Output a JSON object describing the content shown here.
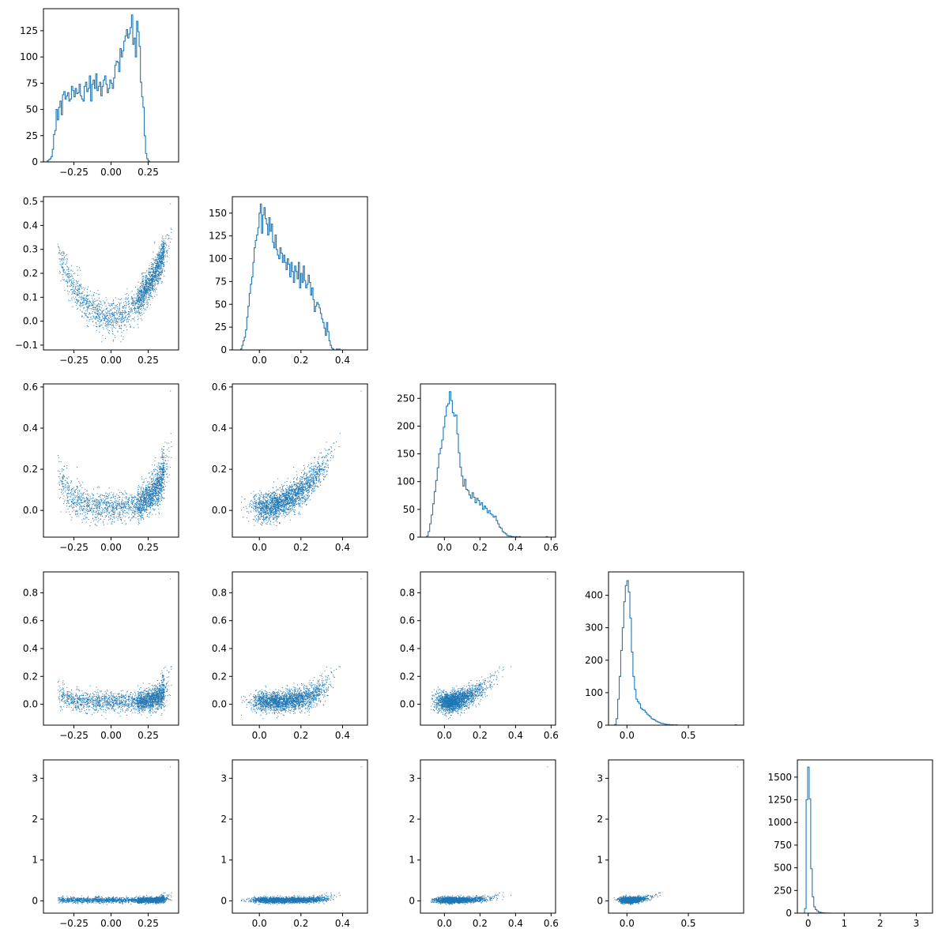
{
  "accent": "#1f77b4",
  "chart_data": {
    "type": "corner",
    "n_vars": 5,
    "n_samples": 5000,
    "variables": [
      {
        "index": 0,
        "range": [
          -0.43,
          0.43
        ]
      },
      {
        "index": 1,
        "range": [
          -0.1,
          0.5
        ]
      },
      {
        "index": 2,
        "range": [
          -0.1,
          0.59
        ]
      },
      {
        "index": 3,
        "range": [
          -0.1,
          0.9
        ]
      },
      {
        "index": 4,
        "range": [
          -0.1,
          3.3
        ]
      }
    ],
    "diagonal": [
      {
        "type": "histogram",
        "var": 0,
        "xlim": [
          -0.455,
          0.455
        ],
        "ylim": [
          0,
          146
        ],
        "xticks": [
          -0.25,
          0.0,
          0.25
        ],
        "xtick_labels": [
          "−0.25",
          "0.00",
          "0.25"
        ],
        "yticks": [
          0,
          25,
          50,
          75,
          100,
          125
        ],
        "ytick_labels": [
          "0",
          "25",
          "50",
          "75",
          "100",
          "125"
        ],
        "bin_start": -0.43,
        "bin_width": 0.0086,
        "counts": [
          1,
          2,
          3,
          5,
          12,
          26,
          30,
          50,
          40,
          52,
          58,
          45,
          64,
          67,
          60,
          63,
          66,
          58,
          60,
          72,
          68,
          62,
          70,
          65,
          66,
          74,
          63,
          60,
          58,
          72,
          76,
          67,
          70,
          82,
          58,
          74,
          78,
          70,
          84,
          68,
          72,
          76,
          63,
          72,
          78,
          82,
          74,
          66,
          70,
          78,
          75,
          70,
          80,
          92,
          96,
          95,
          86,
          108,
          100,
          106,
          115,
          120,
          126,
          118,
          122,
          128,
          140,
          112,
          118,
          100,
          134,
          124,
          110,
          76,
          62,
          52,
          25,
          8,
          3,
          1
        ]
      },
      {
        "type": "histogram",
        "var": 1,
        "xlim": [
          -0.13,
          0.52
        ],
        "ylim": [
          0,
          168
        ],
        "xticks": [
          0.0,
          0.2,
          0.4
        ],
        "xtick_labels": [
          "0.0",
          "0.2",
          "0.4"
        ],
        "yticks": [
          0,
          25,
          50,
          75,
          100,
          125,
          150
        ],
        "ytick_labels": [
          "0",
          "25",
          "50",
          "75",
          "100",
          "125",
          "150"
        ],
        "bin_start": -0.09,
        "bin_width": 0.0059,
        "counts": [
          1,
          5,
          10,
          14,
          22,
          36,
          48,
          62,
          72,
          80,
          96,
          112,
          120,
          126,
          134,
          150,
          160,
          128,
          148,
          156,
          144,
          138,
          126,
          145,
          130,
          138,
          118,
          112,
          126,
          110,
          104,
          100,
          112,
          106,
          96,
          104,
          96,
          88,
          100,
          94,
          80,
          96,
          86,
          74,
          92,
          86,
          78,
          96,
          68,
          84,
          74,
          92,
          76,
          68,
          72,
          82,
          74,
          60,
          68,
          55,
          42,
          48,
          52,
          50,
          46,
          40,
          34,
          30,
          24,
          16,
          30,
          20,
          10,
          5,
          2,
          1,
          0,
          0,
          1,
          0,
          1
        ]
      },
      {
        "type": "histogram",
        "var": 2,
        "xlim": [
          -0.135,
          0.625
        ],
        "ylim": [
          0,
          276
        ],
        "xticks": [
          0.0,
          0.2,
          0.4,
          0.6
        ],
        "xtick_labels": [
          "0.0",
          "0.2",
          "0.4",
          "0.6"
        ],
        "yticks": [
          0,
          50,
          100,
          150,
          200,
          250
        ],
        "ytick_labels": [
          "0",
          "50",
          "100",
          "150",
          "200",
          "250"
        ],
        "bin_start": -0.1,
        "bin_width": 0.0085,
        "counts": [
          2,
          10,
          24,
          40,
          60,
          82,
          102,
          125,
          150,
          160,
          175,
          198,
          218,
          236,
          240,
          262,
          246,
          224,
          218,
          220,
          186,
          152,
          126,
          110,
          92,
          104,
          86,
          84,
          76,
          70,
          80,
          72,
          62,
          70,
          66,
          58,
          62,
          50,
          56,
          52,
          44,
          48,
          42,
          40,
          36,
          38,
          30,
          24,
          18,
          16,
          10,
          8,
          6,
          3,
          2,
          2,
          1,
          1,
          0,
          1,
          0,
          1,
          0,
          0,
          0,
          0,
          0,
          0,
          0,
          0,
          0,
          0,
          0,
          0,
          0,
          0,
          0,
          0,
          0,
          1
        ]
      },
      {
        "type": "histogram",
        "var": 3,
        "xlim": [
          -0.15,
          0.95
        ],
        "ylim": [
          0,
          472
        ],
        "xticks": [
          0.0,
          0.5
        ],
        "xtick_labels": [
          "0.0",
          "0.5"
        ],
        "yticks": [
          0,
          100,
          200,
          300,
          400
        ],
        "ytick_labels": [
          "0",
          "100",
          "200",
          "300",
          "400"
        ],
        "bin_start": -0.1,
        "bin_width": 0.0124,
        "counts": [
          2,
          20,
          80,
          150,
          230,
          300,
          380,
          430,
          445,
          410,
          330,
          225,
          150,
          110,
          80,
          72,
          66,
          52,
          48,
          46,
          40,
          34,
          30,
          26,
          20,
          18,
          16,
          12,
          10,
          8,
          6,
          5,
          4,
          3,
          2,
          2,
          1,
          1,
          1,
          0,
          1,
          0,
          0,
          0,
          0,
          0,
          0,
          0,
          0,
          0,
          0,
          0,
          0,
          0,
          0,
          0,
          0,
          0,
          0,
          0,
          0,
          0,
          0,
          0,
          0,
          0,
          0,
          0,
          0,
          0,
          0,
          0,
          0,
          0,
          0,
          0,
          0,
          0,
          0,
          1
        ]
      },
      {
        "type": "histogram",
        "var": 4,
        "xlim": [
          -0.3,
          3.45
        ],
        "ylim": [
          0,
          1690
        ],
        "xticks": [
          0,
          1,
          2,
          3
        ],
        "xtick_labels": [
          "0",
          "1",
          "2",
          "3"
        ],
        "yticks": [
          0,
          250,
          500,
          750,
          1000,
          1250,
          1500
        ],
        "ytick_labels": [
          "0",
          "250",
          "500",
          "750",
          "1000",
          "1250",
          "1500"
        ],
        "bin_start": -0.1,
        "bin_width": 0.0425,
        "counts": [
          50,
          1250,
          1610,
          1260,
          490,
          180,
          70,
          40,
          25,
          14,
          8,
          5,
          3,
          2,
          1,
          1,
          1,
          0,
          0,
          0,
          0,
          0,
          0,
          0,
          0,
          0,
          0,
          0,
          0,
          0,
          0,
          0,
          0,
          0,
          0,
          0,
          0,
          0,
          0,
          0,
          0,
          0,
          0,
          0,
          0,
          0,
          0,
          0,
          0,
          0,
          0,
          0,
          0,
          0,
          0,
          0,
          0,
          0,
          0,
          0,
          0,
          0,
          0,
          0,
          0,
          0,
          0,
          0,
          0,
          0,
          0,
          0,
          0,
          0,
          0,
          0,
          0,
          0,
          0,
          1
        ]
      }
    ],
    "pairs": [
      {
        "type": "scatter",
        "x_var": 0,
        "y_var": 1,
        "xlim": [
          -0.455,
          0.455
        ],
        "ylim": [
          -0.12,
          0.52
        ],
        "xticks": [
          -0.25,
          0.0,
          0.25
        ],
        "xtick_labels": [
          "−0.25",
          "0.00",
          "0.25"
        ],
        "yticks": [
          -0.1,
          0.0,
          0.1,
          0.2,
          0.3,
          0.4,
          0.5
        ],
        "ytick_labels": [
          "−0.1",
          "0.0",
          "0.1",
          "0.2",
          "0.3",
          "0.4",
          "0.5"
        ]
      },
      {
        "type": "scatter",
        "x_var": 0,
        "y_var": 2,
        "xlim": [
          -0.455,
          0.455
        ],
        "ylim": [
          -0.13,
          0.615
        ],
        "xticks": [
          -0.25,
          0.0,
          0.25
        ],
        "xtick_labels": [
          "−0.25",
          "0.00",
          "0.25"
        ],
        "yticks": [
          0.0,
          0.2,
          0.4,
          0.6
        ],
        "ytick_labels": [
          "0.0",
          "0.2",
          "0.4",
          "0.6"
        ]
      },
      {
        "type": "scatter",
        "x_var": 1,
        "y_var": 2,
        "xlim": [
          -0.13,
          0.52
        ],
        "ylim": [
          -0.13,
          0.615
        ],
        "xticks": [
          0.0,
          0.2,
          0.4
        ],
        "xtick_labels": [
          "0.0",
          "0.2",
          "0.4"
        ],
        "yticks": [
          0.0,
          0.2,
          0.4,
          0.6
        ],
        "ytick_labels": [
          "0.0",
          "0.2",
          "0.4",
          "0.6"
        ]
      },
      {
        "type": "scatter",
        "x_var": 0,
        "y_var": 3,
        "xlim": [
          -0.455,
          0.455
        ],
        "ylim": [
          -0.15,
          0.95
        ],
        "xticks": [
          -0.25,
          0.0,
          0.25
        ],
        "xtick_labels": [
          "−0.25",
          "0.00",
          "0.25"
        ],
        "yticks": [
          0.0,
          0.2,
          0.4,
          0.6,
          0.8
        ],
        "ytick_labels": [
          "0.0",
          "0.2",
          "0.4",
          "0.6",
          "0.8"
        ]
      },
      {
        "type": "scatter",
        "x_var": 1,
        "y_var": 3,
        "xlim": [
          -0.13,
          0.52
        ],
        "ylim": [
          -0.15,
          0.95
        ],
        "xticks": [
          0.0,
          0.2,
          0.4
        ],
        "xtick_labels": [
          "0.0",
          "0.2",
          "0.4"
        ],
        "yticks": [
          0.0,
          0.2,
          0.4,
          0.6,
          0.8
        ],
        "ytick_labels": [
          "0.0",
          "0.2",
          "0.4",
          "0.6",
          "0.8"
        ]
      },
      {
        "type": "scatter",
        "x_var": 2,
        "y_var": 3,
        "xlim": [
          -0.135,
          0.625
        ],
        "ylim": [
          -0.15,
          0.95
        ],
        "xticks": [
          0.0,
          0.2,
          0.4,
          0.6
        ],
        "xtick_labels": [
          "0.0",
          "0.2",
          "0.4",
          "0.6"
        ],
        "yticks": [
          0.0,
          0.2,
          0.4,
          0.6,
          0.8
        ],
        "ytick_labels": [
          "0.0",
          "0.2",
          "0.4",
          "0.6",
          "0.8"
        ]
      },
      {
        "type": "scatter",
        "x_var": 0,
        "y_var": 4,
        "xlim": [
          -0.455,
          0.455
        ],
        "ylim": [
          -0.3,
          3.45
        ],
        "xticks": [
          -0.25,
          0.0,
          0.25
        ],
        "xtick_labels": [
          "−0.25",
          "0.00",
          "0.25"
        ],
        "yticks": [
          0,
          1,
          2,
          3
        ],
        "ytick_labels": [
          "0",
          "1",
          "2",
          "3"
        ]
      },
      {
        "type": "scatter",
        "x_var": 1,
        "y_var": 4,
        "xlim": [
          -0.13,
          0.52
        ],
        "ylim": [
          -0.3,
          3.45
        ],
        "xticks": [
          0.0,
          0.2,
          0.4
        ],
        "xtick_labels": [
          "0.0",
          "0.2",
          "0.4"
        ],
        "yticks": [
          0,
          1,
          2,
          3
        ],
        "ytick_labels": [
          "0",
          "1",
          "2",
          "3"
        ]
      },
      {
        "type": "scatter",
        "x_var": 2,
        "y_var": 4,
        "xlim": [
          -0.135,
          0.625
        ],
        "ylim": [
          -0.3,
          3.45
        ],
        "xticks": [
          0.0,
          0.2,
          0.4,
          0.6
        ],
        "xtick_labels": [
          "0.0",
          "0.2",
          "0.4",
          "0.6"
        ],
        "yticks": [
          0,
          1,
          2,
          3
        ],
        "ytick_labels": [
          "0",
          "1",
          "2",
          "3"
        ]
      },
      {
        "type": "scatter",
        "x_var": 3,
        "y_var": 4,
        "xlim": [
          -0.15,
          0.95
        ],
        "ylim": [
          -0.3,
          3.45
        ],
        "xticks": [
          0.0,
          0.5
        ],
        "xtick_labels": [
          "0.0",
          "0.5"
        ],
        "yticks": [
          0,
          1,
          2,
          3
        ],
        "ytick_labels": [
          "0",
          "1",
          "2",
          "3"
        ]
      }
    ]
  }
}
